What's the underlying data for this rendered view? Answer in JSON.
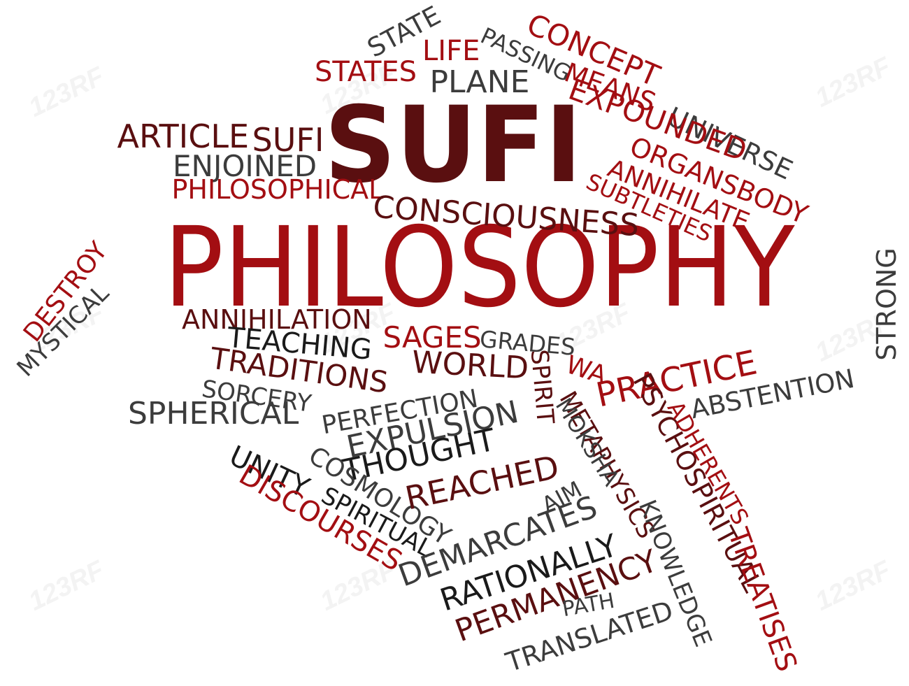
{
  "colors": {
    "dark_red": "#5a0f10",
    "red": "#a30e12",
    "black": "#1a1a1a",
    "gray": "#3c3c3c"
  },
  "words": [
    {
      "key": "sufi_big",
      "text": "SUFI",
      "color": "dark_red",
      "weight": "bold"
    },
    {
      "key": "philosophy_big",
      "text": "PHILOSOPHY",
      "color": "red",
      "weight": "normal"
    },
    {
      "key": "state",
      "text": "STATE",
      "color": "gray",
      "weight": "normal"
    },
    {
      "key": "life",
      "text": "LIFE",
      "color": "red",
      "weight": "normal"
    },
    {
      "key": "passing",
      "text": "PASSING",
      "color": "gray",
      "weight": "normal"
    },
    {
      "key": "concept",
      "text": "CONCEPT",
      "color": "red",
      "weight": "normal"
    },
    {
      "key": "states",
      "text": "STATES",
      "color": "red",
      "weight": "normal"
    },
    {
      "key": "plane",
      "text": "PLANE",
      "color": "gray",
      "weight": "normal"
    },
    {
      "key": "means",
      "text": "MEANS",
      "color": "red",
      "weight": "normal"
    },
    {
      "key": "universe",
      "text": "UNIVERSE",
      "color": "gray",
      "weight": "normal"
    },
    {
      "key": "expounded",
      "text": "EXPOUNDED",
      "color": "red",
      "weight": "normal"
    },
    {
      "key": "organsbody",
      "text": "ORGANSBODY",
      "color": "red",
      "weight": "normal"
    },
    {
      "key": "annihilate",
      "text": "ANNIHILATE",
      "color": "red",
      "weight": "normal"
    },
    {
      "key": "subtleties",
      "text": "SUBTLETIES",
      "color": "red",
      "weight": "normal"
    },
    {
      "key": "article",
      "text": "ARTICLE",
      "color": "dark_red",
      "weight": "normal"
    },
    {
      "key": "sufi_small",
      "text": "SUFI",
      "color": "dark_red",
      "weight": "normal"
    },
    {
      "key": "enjoined",
      "text": "ENJOINED",
      "color": "gray",
      "weight": "normal"
    },
    {
      "key": "philosophical",
      "text": "PHILOSOPHICAL",
      "color": "red",
      "weight": "normal"
    },
    {
      "key": "consciousness",
      "text": "CONSCIOUSNESS",
      "color": "dark_red",
      "weight": "normal"
    },
    {
      "key": "destroy",
      "text": "DESTROY",
      "color": "red",
      "weight": "normal"
    },
    {
      "key": "mystical",
      "text": "MYSTICAL",
      "color": "gray",
      "weight": "normal"
    },
    {
      "key": "strong",
      "text": "STRONG",
      "color": "gray",
      "weight": "normal"
    },
    {
      "key": "annihilation",
      "text": "ANNIHILATION",
      "color": "dark_red",
      "weight": "normal"
    },
    {
      "key": "sages",
      "text": "SAGES",
      "color": "red",
      "weight": "normal"
    },
    {
      "key": "grades",
      "text": "GRADES",
      "color": "gray",
      "weight": "normal"
    },
    {
      "key": "teaching",
      "text": "TEACHING",
      "color": "black",
      "weight": "normal"
    },
    {
      "key": "traditions",
      "text": "TRADITIONS",
      "color": "dark_red",
      "weight": "normal"
    },
    {
      "key": "world",
      "text": "WORLD",
      "color": "dark_red",
      "weight": "normal"
    },
    {
      "key": "spirit",
      "text": "SPIRIT",
      "color": "dark_red",
      "weight": "normal"
    },
    {
      "key": "wa",
      "text": "WA",
      "color": "red",
      "weight": "normal"
    },
    {
      "key": "practice",
      "text": "PRACTICE",
      "color": "red",
      "weight": "normal"
    },
    {
      "key": "abstention",
      "text": "ABSTENTION",
      "color": "gray",
      "weight": "normal"
    },
    {
      "key": "sorcery",
      "text": "SORCERY",
      "color": "gray",
      "weight": "normal"
    },
    {
      "key": "spherical",
      "text": "SPHERICAL",
      "color": "gray",
      "weight": "normal"
    },
    {
      "key": "perfection",
      "text": "PERFECTION",
      "color": "gray",
      "weight": "normal"
    },
    {
      "key": "metaphysics",
      "text": "METAPHYSICS",
      "color": "dark_red",
      "weight": "normal"
    },
    {
      "key": "psychospiritual",
      "text": "PSYCHOSPIRITUAL",
      "color": "dark_red",
      "weight": "normal"
    },
    {
      "key": "adherents",
      "text": "ADHERENTS",
      "color": "red",
      "weight": "normal"
    },
    {
      "key": "expulsion",
      "text": "EXPULSION",
      "color": "gray",
      "weight": "normal"
    },
    {
      "key": "thought",
      "text": "THOUGHT",
      "color": "black",
      "weight": "normal"
    },
    {
      "key": "moksha",
      "text": "MOKSHA",
      "color": "gray",
      "weight": "normal"
    },
    {
      "key": "knowledge",
      "text": "KNOWLEDGE",
      "color": "gray",
      "weight": "normal"
    },
    {
      "key": "unity",
      "text": "UNITY",
      "color": "black",
      "weight": "normal"
    },
    {
      "key": "cosmology",
      "text": "COSMOLOGY",
      "color": "gray",
      "weight": "normal"
    },
    {
      "key": "reached",
      "text": "REACHED",
      "color": "dark_red",
      "weight": "normal"
    },
    {
      "key": "discourses",
      "text": "DISCOURSES",
      "color": "red",
      "weight": "normal"
    },
    {
      "key": "spiritual",
      "text": "SPIRITUAL",
      "color": "black",
      "weight": "normal"
    },
    {
      "key": "aim",
      "text": "AIM",
      "color": "gray",
      "weight": "normal"
    },
    {
      "key": "demarcates",
      "text": "DEMARCATES",
      "color": "gray",
      "weight": "normal"
    },
    {
      "key": "rationally",
      "text": "RATIONALLY",
      "color": "black",
      "weight": "normal"
    },
    {
      "key": "permanency",
      "text": "PERMANENCY",
      "color": "dark_red",
      "weight": "normal"
    },
    {
      "key": "path",
      "text": "PATH",
      "color": "gray",
      "weight": "normal"
    },
    {
      "key": "translated",
      "text": "TRANSLATED",
      "color": "gray",
      "weight": "normal"
    },
    {
      "key": "treatises",
      "text": "TREATISES",
      "color": "red",
      "weight": "normal"
    }
  ],
  "watermark": {
    "text": "123RF",
    "note_symbol": "®"
  }
}
